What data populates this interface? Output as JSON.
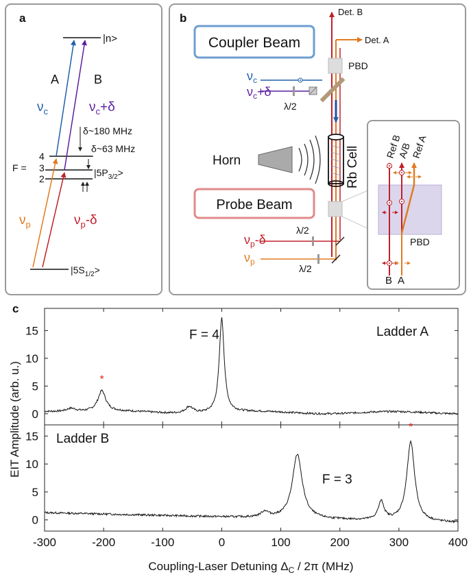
{
  "panel_a": {
    "label": "a",
    "level_n": "|n>",
    "ladder_a": "A",
    "ladder_b": "B",
    "nu_c": "ν",
    "nu_c_sub": "c",
    "nu_c_delta": "ν",
    "nu_c_delta_sub": "c",
    "nu_c_delta_suffix": "+δ",
    "delta_180": "δ~180 MHz",
    "delta_63": "δ~63 MHz",
    "f_eq": "F =",
    "f4": "4",
    "f3": "3",
    "f2": "2",
    "level_5p": "|5P",
    "level_5p_sub": "3/2",
    "level_5p_close": ">",
    "nu_p": "ν",
    "nu_p_sub": "p",
    "nu_p_delta": "ν",
    "nu_p_delta_sub": "p",
    "nu_p_delta_suffix": "-δ",
    "level_5s": "|5S",
    "level_5s_sub": "1/2",
    "level_5s_close": ">",
    "colors": {
      "coupler": "#1f5fa8",
      "coupler_delta": "#5b1fa0",
      "probe": "#e07a1f",
      "probe_delta": "#c0202a"
    }
  },
  "panel_b": {
    "label": "b",
    "coupler_beam": "Coupler Beam",
    "probe_beam": "Probe Beam",
    "det_b": "Det. B",
    "det_a": "Det. A",
    "pbd_top": "PBD",
    "pbd_inset": "PBD",
    "nu_c": "ν",
    "nu_c_sub": "c",
    "nu_c_delta": "ν",
    "nu_c_delta_sub": "c",
    "nu_c_delta_suffix": "+δ",
    "lambda_half_1": "λ/2",
    "lambda_half_2": "λ/2",
    "lambda_half_3": "λ/2",
    "horn": "Horn",
    "rb_cell": "Rb Cell",
    "nu_p_delta": "ν",
    "nu_p_delta_sub": "p",
    "nu_p_delta_suffix": "-δ",
    "nu_p": "ν",
    "nu_p_sub": "p",
    "ref_b": "Ref B",
    "ab": "A/B",
    "ref_a": "Ref A",
    "inset_b": "B",
    "inset_a": "A"
  },
  "panel_c": {
    "label": "c",
    "ylabel": "EIT Amplitude (arb. u.)",
    "xlabel": "Coupling-Laser Detuning Δ",
    "xlabel_sub": "C",
    "xlabel_suffix": " / 2π (MHz)",
    "ladder_a": "Ladder A",
    "ladder_b": "Ladder B",
    "f4_label": "F = 4",
    "f3_label": "F = 3",
    "asterisk_a": "*",
    "asterisk_b": "*"
  },
  "chart_data": [
    {
      "type": "line",
      "title": "Ladder A",
      "xlim": [
        -300,
        400
      ],
      "ylim": [
        -2,
        19
      ],
      "yticks": [
        0,
        5,
        10,
        15
      ],
      "ytick_labels": [
        "0",
        "5",
        "10",
        "15"
      ],
      "xlabel": "",
      "ylabel": "",
      "baseline": 0.2,
      "peaks": [
        {
          "x": -255,
          "height": 0.6,
          "width": 10
        },
        {
          "x": -203,
          "height": 3.7,
          "width": 8
        },
        {
          "x": -55,
          "height": 1.2,
          "width": 8
        },
        {
          "x": 0,
          "height": 17.0,
          "width": 5
        }
      ],
      "annotations": [
        {
          "text": "F = 4",
          "x": -55,
          "y": 13.5
        },
        {
          "text": "*",
          "x": -203,
          "y": 5.6
        }
      ]
    },
    {
      "type": "line",
      "title": "Ladder B",
      "xlim": [
        -300,
        400
      ],
      "ylim": [
        -2,
        17
      ],
      "yticks": [
        0,
        5,
        10,
        15
      ],
      "ytick_labels": [
        "0",
        "5",
        "10",
        "15"
      ],
      "xticks": [
        -300,
        -200,
        -100,
        0,
        100,
        200,
        300,
        400
      ],
      "xtick_labels": [
        "-300",
        "-200",
        "-100",
        "0",
        "100",
        "200",
        "300",
        "400"
      ],
      "xlabel": "Coupling-Laser Detuning ΔC / 2π (MHz)",
      "ylabel": "",
      "baseline_start": 1.3,
      "baseline_end": -0.5,
      "peaks": [
        {
          "x": 73,
          "height": 1.0,
          "width": 8
        },
        {
          "x": 128,
          "height": 11.5,
          "width": 10
        },
        {
          "x": 270,
          "height": 3.3,
          "width": 6
        },
        {
          "x": 320,
          "height": 14.2,
          "width": 8
        }
      ],
      "annotations": [
        {
          "text": "F = 3",
          "x": 170,
          "y": 6.5
        },
        {
          "text": "*",
          "x": 320,
          "y": 16.0
        }
      ]
    }
  ]
}
